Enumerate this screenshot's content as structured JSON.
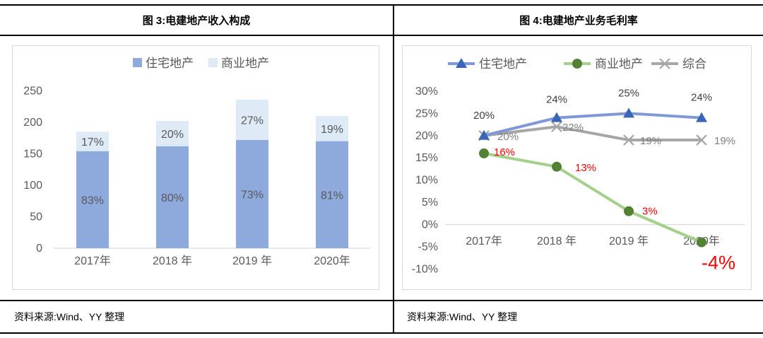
{
  "panels": [
    {
      "title": "图 3:电建地产收入构成",
      "source": "资料来源:Wind、YY 整理"
    },
    {
      "title": "图 4:电建地产业务毛利率",
      "source": "资料来源:Wind、YY 整理"
    }
  ],
  "colors": {
    "residential_bar": "#8EA9DB",
    "commercial_bar": "#DEEAF6",
    "blue_line": "#7E99D6",
    "blue_marker": "#3B66B5",
    "green_line": "#A4D08C",
    "green_marker": "#548235",
    "gray_line": "#A6A6A6",
    "axis_text": "#595959",
    "red_label": "#FF0000",
    "frame": "#D9D9D9",
    "rule": "#000000"
  },
  "chart_data": [
    {
      "type": "bar",
      "stacked": true,
      "title": "图 3:电建地产收入构成",
      "categories": [
        "2017年",
        "2018 年",
        "2019 年",
        "2020年"
      ],
      "series": [
        {
          "name": "住宅地产",
          "color": "#8EA9DB",
          "values": [
            154,
            162,
            172,
            170
          ],
          "labels": [
            "83%",
            "80%",
            "73%",
            "81%"
          ]
        },
        {
          "name": "商业地产",
          "color": "#DEEAF6",
          "values": [
            31,
            40,
            64,
            40
          ],
          "labels": [
            "17%",
            "20%",
            "27%",
            "19%"
          ]
        }
      ],
      "totals_estimated": [
        185,
        202,
        236,
        210
      ],
      "ylim": [
        0,
        250
      ],
      "yticks": [
        0,
        50,
        100,
        150,
        200,
        250
      ],
      "grid": false,
      "legend_position": "top"
    },
    {
      "type": "line",
      "title": "图 4:电建地产业务毛利率",
      "categories": [
        "2017年",
        "2018 年",
        "2019 年",
        "2020年"
      ],
      "series": [
        {
          "name": "住宅地产",
          "marker": "triangle",
          "line_color": "#7E99D6",
          "marker_color": "#3B66B5",
          "values": [
            20,
            24,
            25,
            24
          ],
          "labels": [
            "20%",
            "24%",
            "25%",
            "24%"
          ],
          "label_color": "#404040"
        },
        {
          "name": "商业地产",
          "marker": "circle",
          "line_color": "#A4D08C",
          "marker_color": "#548235",
          "values": [
            16,
            13,
            3,
            -4
          ],
          "labels": [
            "16%",
            "13%",
            "3%",
            "-4%"
          ],
          "label_color": "#FF0000"
        },
        {
          "name": "综合",
          "marker": "x",
          "line_color": "#A6A6A6",
          "marker_color": "#A6A6A6",
          "values": [
            20,
            22,
            19,
            19
          ],
          "labels": [
            "20%",
            "22%",
            "19%",
            "19%"
          ],
          "label_color": "#7F7F7F"
        }
      ],
      "ylim": [
        -10,
        30
      ],
      "yticks": [
        "30%",
        "25%",
        "20%",
        "15%",
        "10%",
        "5%",
        "0%",
        "-5%",
        "-10%"
      ],
      "grid": false,
      "legend_position": "top"
    }
  ]
}
